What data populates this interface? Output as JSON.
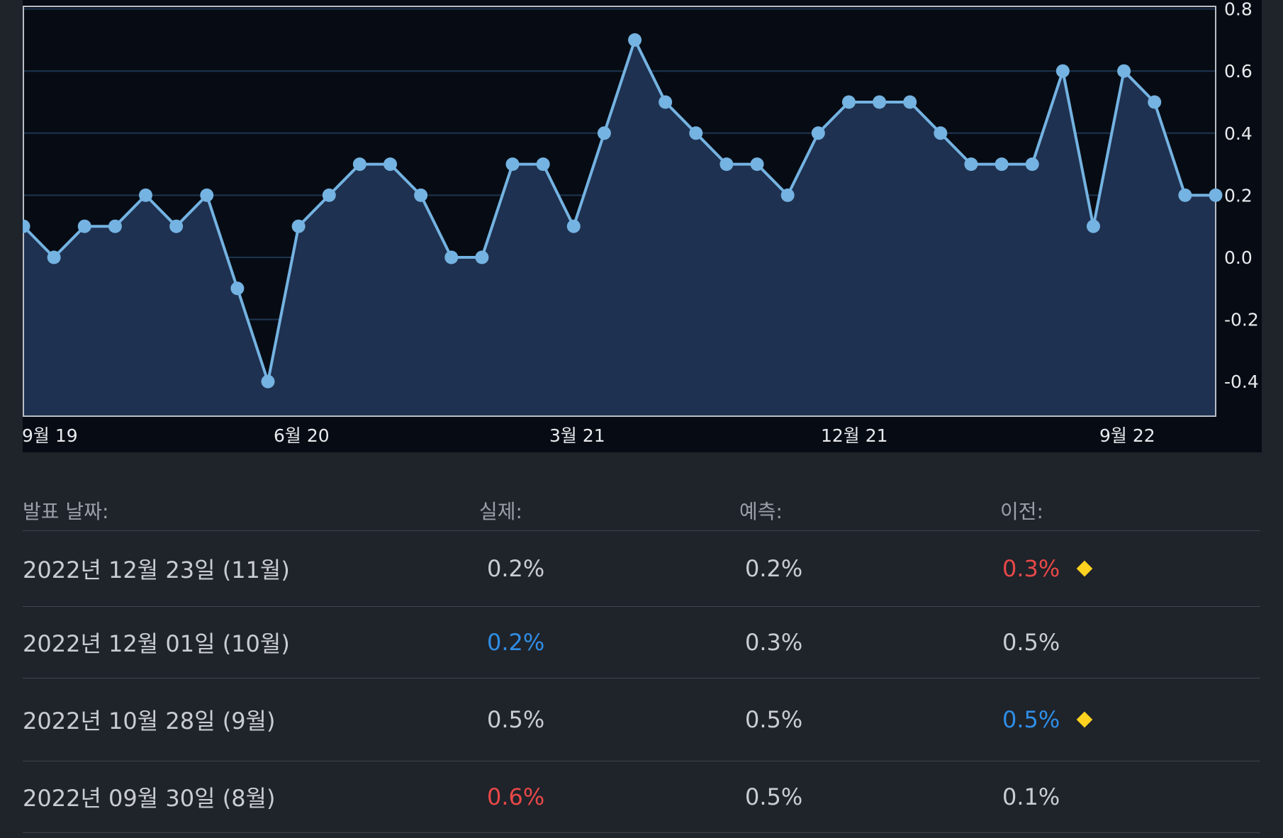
{
  "chart_data": {
    "type": "area",
    "x_tick_labels": [
      "9월 19",
      "6월 20",
      "3월 21",
      "12월 21",
      "9월 22"
    ],
    "y_tick_labels": [
      "0.8",
      "0.6",
      "0.4",
      "0.2",
      "0.0",
      "-0.2",
      "-0.4"
    ],
    "ylim": [
      -0.5,
      0.8
    ],
    "grid": true,
    "values": [
      0.1,
      0.0,
      0.1,
      0.1,
      0.2,
      0.1,
      0.2,
      -0.1,
      -0.4,
      0.1,
      0.2,
      0.3,
      0.3,
      0.2,
      0.0,
      0.0,
      0.3,
      0.3,
      0.1,
      0.4,
      0.7,
      0.5,
      0.4,
      0.3,
      0.3,
      0.2,
      0.4,
      0.5,
      0.5,
      0.5,
      0.4,
      0.3,
      0.3,
      0.3,
      0.6,
      0.1,
      0.6,
      0.5,
      0.2,
      0.2
    ],
    "colors": {
      "line": "#74b3e2",
      "fill": "#1f3150",
      "grid": "#1f3550",
      "background": "#070c14"
    }
  },
  "table": {
    "headers": {
      "date": "발표 날짜:",
      "actual": "실제:",
      "forecast": "예측:",
      "previous": "이전:"
    },
    "rows": [
      {
        "date": "2022년 12월 23일 (11월)",
        "actual": "0.2%",
        "actual_color": "#c9cdd3",
        "forecast": "0.2%",
        "previous": "0.3%",
        "previous_color": "#e84848",
        "revised_icon": "diamond-icon"
      },
      {
        "date": "2022년 12월 01일 (10월)",
        "actual": "0.2%",
        "actual_color": "#2f8ee6",
        "forecast": "0.3%",
        "previous": "0.5%",
        "previous_color": "#c9cdd3",
        "revised_icon": ""
      },
      {
        "date": "2022년 10월 28일 (9월)",
        "actual": "0.5%",
        "actual_color": "#c9cdd3",
        "forecast": "0.5%",
        "previous": "0.5%",
        "previous_color": "#2f8ee6",
        "revised_icon": "diamond-icon"
      },
      {
        "date": "2022년 09월 30일 (8월)",
        "actual": "0.6%",
        "actual_color": "#e84848",
        "forecast": "0.5%",
        "previous": "0.1%",
        "previous_color": "#c9cdd3",
        "revised_icon": ""
      }
    ]
  }
}
